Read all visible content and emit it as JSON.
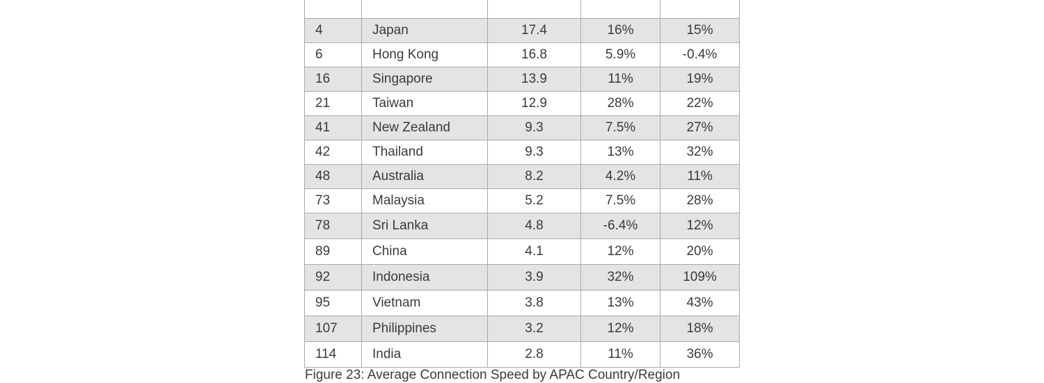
{
  "table": {
    "rows": [
      {
        "rank": "",
        "country": "",
        "speed": "",
        "qoq": "",
        "yoy": ""
      },
      {
        "rank": "4",
        "country": "Japan",
        "speed": "17.4",
        "qoq": "16%",
        "yoy": "15%"
      },
      {
        "rank": "6",
        "country": "Hong Kong",
        "speed": "16.8",
        "qoq": "5.9%",
        "yoy": "-0.4%"
      },
      {
        "rank": "16",
        "country": "Singapore",
        "speed": "13.9",
        "qoq": "11%",
        "yoy": "19%"
      },
      {
        "rank": "21",
        "country": "Taiwan",
        "speed": "12.9",
        "qoq": "28%",
        "yoy": "22%"
      },
      {
        "rank": "41",
        "country": "New Zealand",
        "speed": "9.3",
        "qoq": "7.5%",
        "yoy": "27%"
      },
      {
        "rank": "42",
        "country": "Thailand",
        "speed": "9.3",
        "qoq": "13%",
        "yoy": "32%"
      },
      {
        "rank": "48",
        "country": "Australia",
        "speed": "8.2",
        "qoq": "4.2%",
        "yoy": "11%"
      },
      {
        "rank": "73",
        "country": "Malaysia",
        "speed": "5.2",
        "qoq": "7.5%",
        "yoy": "28%"
      },
      {
        "rank": "78",
        "country": "Sri Lanka",
        "speed": "4.8",
        "qoq": "-6.4%",
        "yoy": "12%"
      },
      {
        "rank": "89",
        "country": "China",
        "speed": "4.1",
        "qoq": "12%",
        "yoy": "20%"
      },
      {
        "rank": "92",
        "country": "Indonesia",
        "speed": "3.9",
        "qoq": "32%",
        "yoy": "109%"
      },
      {
        "rank": "95",
        "country": "Vietnam",
        "speed": "3.8",
        "qoq": "13%",
        "yoy": "43%"
      },
      {
        "rank": "107",
        "country": "Philippines",
        "speed": "3.2",
        "qoq": "12%",
        "yoy": "18%"
      },
      {
        "rank": "114",
        "country": "India",
        "speed": "2.8",
        "qoq": "11%",
        "yoy": "36%"
      }
    ]
  },
  "caption": "Figure 23: Average Connection Speed by APAC Country/Region"
}
